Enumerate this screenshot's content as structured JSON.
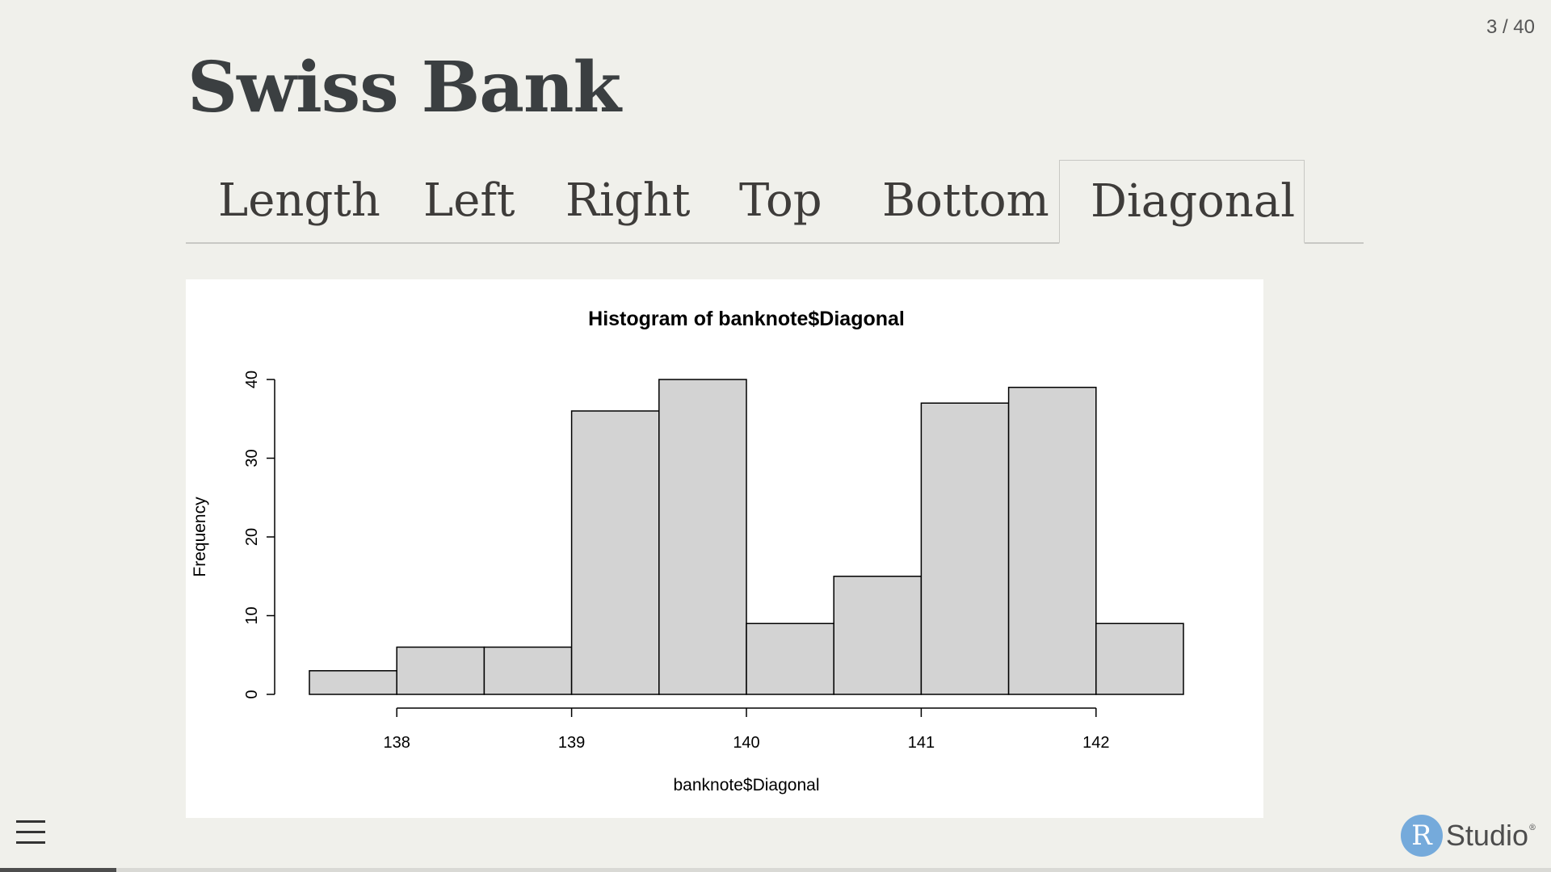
{
  "slide": {
    "counter": "3 / 40",
    "title": "Swiss Bank"
  },
  "tabs": [
    {
      "label": "Length",
      "active": false
    },
    {
      "label": "Left",
      "active": false
    },
    {
      "label": "Right",
      "active": false
    },
    {
      "label": "Top",
      "active": false
    },
    {
      "label": "Bottom",
      "active": false
    },
    {
      "label": "Diagonal",
      "active": true
    }
  ],
  "chart_data": {
    "type": "bar",
    "title": "Histogram of banknote$Diagonal",
    "xlabel": "banknote$Diagonal",
    "ylabel": "Frequency",
    "bin_edges": [
      137.5,
      138.0,
      138.5,
      139.0,
      139.5,
      140.0,
      140.5,
      141.0,
      141.5,
      142.0,
      142.5
    ],
    "values": [
      3,
      6,
      6,
      36,
      40,
      9,
      15,
      37,
      39,
      9
    ],
    "xticks": [
      138,
      139,
      140,
      141,
      142
    ],
    "yticks": [
      0,
      10,
      20,
      30,
      40
    ],
    "xlim": [
      137.5,
      142.5
    ],
    "ylim": [
      0,
      40
    ],
    "bar_color": "#d3d3d3",
    "grid": false
  },
  "progress": {
    "fraction": 0.075
  },
  "logo": {
    "letter": "R",
    "word": "Studio",
    "mark": "®"
  },
  "colors": {
    "background": "#f0f0eb",
    "logo_circle": "#75aadb"
  }
}
